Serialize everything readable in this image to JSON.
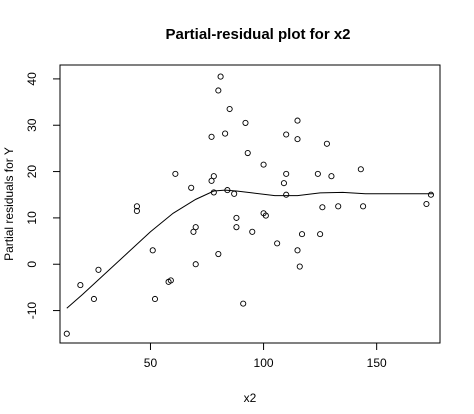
{
  "chart_data": {
    "type": "scatter",
    "title": "Partial-residual plot for x2",
    "xlabel": "x2",
    "ylabel": "Partial residuals for Y",
    "xlim": [
      10,
      178
    ],
    "ylim": [
      -17,
      43
    ],
    "x_ticks": [
      "50",
      "100",
      "150"
    ],
    "x_tick_values": [
      50,
      100,
      150
    ],
    "y_ticks": [
      "-10",
      "0",
      "10",
      "20",
      "30",
      "40"
    ],
    "y_tick_values": [
      -10,
      0,
      10,
      20,
      30,
      40
    ],
    "grid": false,
    "legend": "none",
    "colors": {
      "points": "#000000",
      "line": "#000000",
      "background": "#ffffff"
    },
    "series": [
      {
        "type": "scatter",
        "x": [
          13,
          19,
          25,
          27,
          44,
          44,
          51,
          52,
          58,
          59,
          61,
          68,
          69,
          70,
          70,
          77,
          77,
          78,
          78,
          80,
          80,
          81,
          83,
          84,
          85,
          87,
          88,
          88,
          91,
          92,
          93,
          95,
          100,
          100,
          101,
          106,
          109,
          110,
          110,
          110,
          115,
          115,
          115,
          116,
          117,
          124,
          125,
          126,
          128,
          130,
          133,
          143,
          144,
          172,
          174
        ],
        "y": [
          -15,
          -4.5,
          -7.5,
          -1.2,
          12.5,
          11.5,
          3,
          -7.5,
          -3.8,
          -3.5,
          19.5,
          16.5,
          7,
          0,
          8,
          27.5,
          18,
          19,
          15.5,
          37.5,
          2.2,
          40.5,
          28.2,
          16,
          33.5,
          15.2,
          10,
          8,
          -8.5,
          30.5,
          24,
          7,
          21.5,
          11,
          10.5,
          4.5,
          17.5,
          15,
          19.5,
          28,
          31,
          27,
          3,
          -0.5,
          6.5,
          19.5,
          6.5,
          12.3,
          26,
          19,
          12.5,
          20.5,
          12.5,
          13,
          15
        ]
      },
      {
        "type": "line",
        "x": [
          13,
          20,
          30,
          40,
          50,
          60,
          70,
          78,
          83,
          88,
          95,
          105,
          115,
          125,
          135,
          145,
          160,
          175
        ],
        "y": [
          -9.5,
          -6.5,
          -2,
          2.5,
          7,
          11,
          14,
          15.8,
          16,
          15.8,
          15.4,
          14.8,
          14.8,
          15.4,
          15.5,
          15.2,
          15.2,
          15.2
        ]
      }
    ]
  }
}
